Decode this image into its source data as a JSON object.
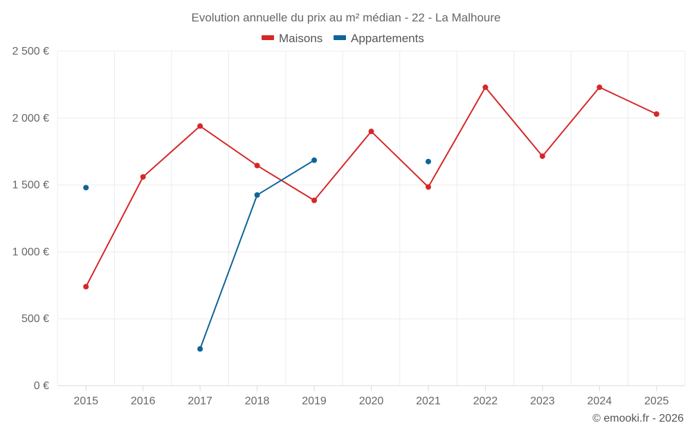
{
  "chart_data": {
    "type": "line",
    "title": "Evolution annuelle du prix au m² médian - 22 - La Malhoure",
    "categories": [
      "2015",
      "2016",
      "2017",
      "2018",
      "2019",
      "2020",
      "2021",
      "2022",
      "2023",
      "2024",
      "2025"
    ],
    "ylim": [
      0,
      2500
    ],
    "ytick_values": [
      0,
      500,
      1000,
      1500,
      2000,
      2500
    ],
    "ytick_labels": [
      "0 €",
      "500 €",
      "1 000 €",
      "1 500 €",
      "2 000 €",
      "2 500 €"
    ],
    "xlabel": "",
    "ylabel": "",
    "grid": true,
    "legend_position": "top-center",
    "series": [
      {
        "name": "Maisons",
        "color": "#d62728",
        "values": [
          740,
          1560,
          1940,
          1645,
          1385,
          1900,
          1485,
          2230,
          1715,
          2230,
          2030
        ]
      },
      {
        "name": "Appartements",
        "color": "#0e6499",
        "values": [
          1480,
          null,
          275,
          1425,
          1685,
          null,
          1675,
          null,
          null,
          null,
          null
        ]
      }
    ]
  },
  "credit": "© emooki.fr - 2026"
}
